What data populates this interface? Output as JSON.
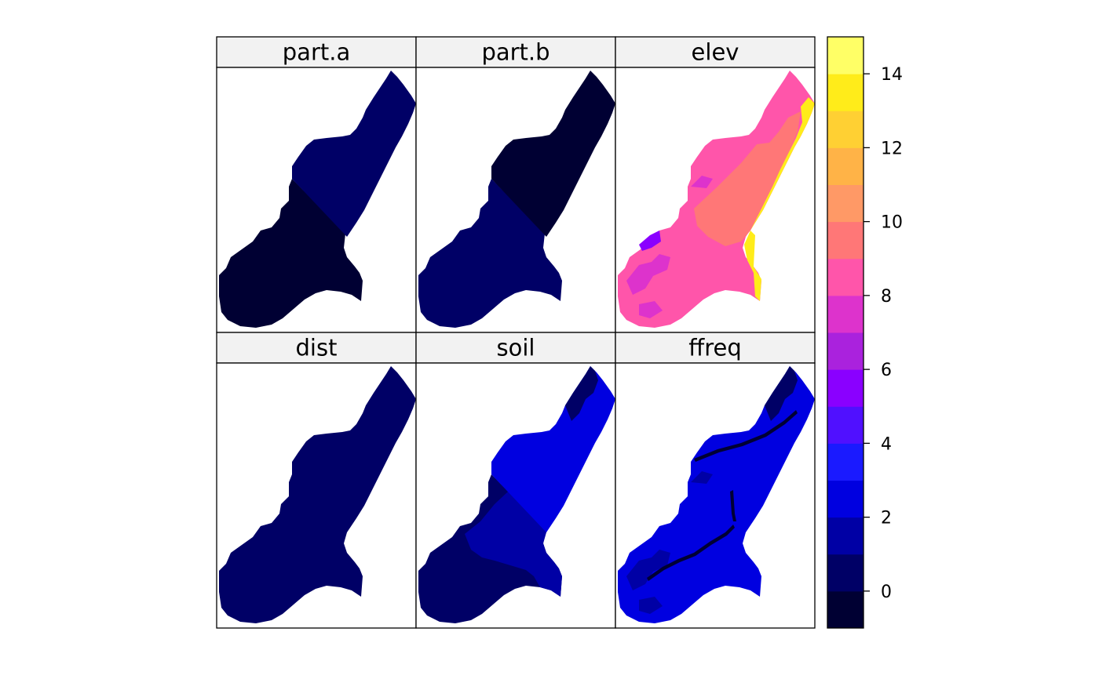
{
  "chart_data": {
    "type": "heatmap",
    "layout": {
      "columns": 3,
      "rows": 2
    },
    "panels": [
      {
        "name": "part.a",
        "regions": [
          {
            "zone": "lower",
            "value": -0.5
          },
          {
            "zone": "upper",
            "value": 0.5
          }
        ]
      },
      {
        "name": "part.b",
        "regions": [
          {
            "zone": "lower",
            "value": 0.5
          },
          {
            "zone": "upper",
            "value": -0.5
          }
        ]
      },
      {
        "name": "elev",
        "regions": [
          {
            "zone": "base",
            "value": 8.5
          },
          {
            "zone": "centre-band",
            "value": 9.5
          },
          {
            "zone": "west-patches",
            "value": 7.5
          },
          {
            "zone": "west-low-patch",
            "value": 5.5
          },
          {
            "zone": "east-bank",
            "value": 13.5
          }
        ]
      },
      {
        "name": "dist",
        "regions": [
          {
            "zone": "whole",
            "value": 0.5
          }
        ]
      },
      {
        "name": "soil",
        "regions": [
          {
            "zone": "lower",
            "value": 0.5
          },
          {
            "zone": "middle",
            "value": 1.5
          },
          {
            "zone": "upper",
            "value": 2.5
          },
          {
            "zone": "north-patch",
            "value": 0.5
          }
        ]
      },
      {
        "name": "ffreq",
        "regions": [
          {
            "zone": "base",
            "value": 2.5
          },
          {
            "zone": "north-patch",
            "value": 0.5
          },
          {
            "zone": "west-patches",
            "value": 1.5
          },
          {
            "zone": "channel-lines",
            "value": -0.5
          }
        ]
      }
    ],
    "colorbar": {
      "ticks": [
        0,
        2,
        4,
        6,
        8,
        10,
        12,
        14
      ],
      "range": [
        -1,
        15
      ],
      "colors": [
        "#000033",
        "#000066",
        "#0000A5",
        "#0000E0",
        "#1A1AFF",
        "#5010FF",
        "#8A00FF",
        "#AA22DD",
        "#DD33CC",
        "#FF55AA",
        "#FF7777",
        "#FF9966",
        "#FFB347",
        "#FFD033",
        "#FFEC1A",
        "#FFFF66"
      ]
    },
    "strip_color": "#F2F2F2",
    "grid": false
  }
}
